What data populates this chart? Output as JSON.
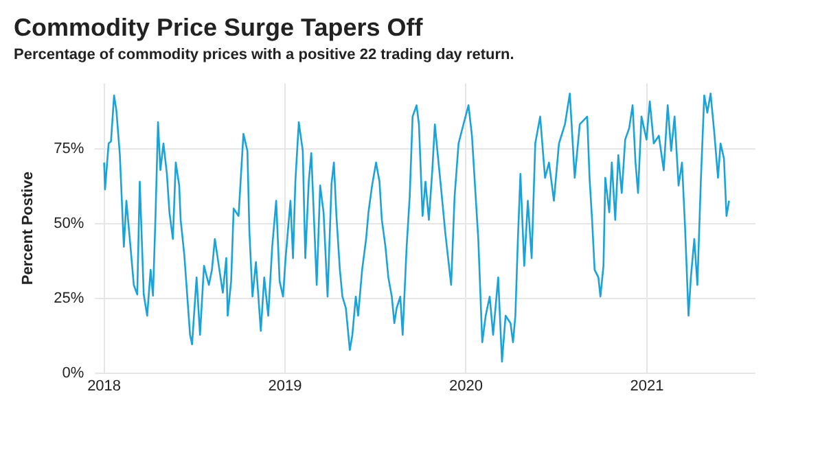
{
  "chart_data": {
    "type": "line",
    "title": "Commodity Price Surge Tapers Off",
    "subtitle": "Percentage of commodity prices with a positive 22 trading day return.",
    "ylabel": "Percent Postive",
    "xlim": [
      2017.95,
      2021.6
    ],
    "xticks": [
      2018,
      2019,
      2020,
      2021
    ],
    "ylim": [
      0,
      97
    ],
    "yticks": [
      {
        "value": 0,
        "label": "0%"
      },
      {
        "value": 25,
        "label": "25%"
      },
      {
        "value": 50,
        "label": "50%"
      },
      {
        "value": 75,
        "label": "75%"
      }
    ],
    "grid": true,
    "legend": false,
    "marker": "none",
    "line_style": "solid",
    "series": [
      {
        "color": "#1aa3d9",
        "x": [
          2018.0,
          2018.005,
          2018.025,
          2018.038,
          2018.055,
          2018.068,
          2018.087,
          2018.109,
          2018.123,
          2018.142,
          2018.164,
          2018.183,
          2018.197,
          2018.219,
          2018.238,
          2018.257,
          2018.27,
          2018.284,
          2018.298,
          2018.311,
          2018.328,
          2018.347,
          2018.361,
          2018.38,
          2018.396,
          2018.415,
          2018.423,
          2018.443,
          2018.475,
          2018.486,
          2018.511,
          2018.53,
          2018.552,
          2018.579,
          2018.596,
          2018.612,
          2018.634,
          2018.656,
          2018.675,
          2018.683,
          2018.702,
          2018.716,
          2018.743,
          2018.77,
          2018.792,
          2018.803,
          2018.82,
          2018.839,
          2018.866,
          2018.885,
          2018.907,
          2018.929,
          2018.951,
          2018.97,
          2018.989,
          2019.003,
          2019.03,
          2019.044,
          2019.057,
          2019.076,
          2019.098,
          2019.112,
          2019.131,
          2019.145,
          2019.175,
          2019.194,
          2019.213,
          2019.235,
          2019.257,
          2019.27,
          2019.284,
          2019.303,
          2019.317,
          2019.336,
          2019.358,
          2019.372,
          2019.391,
          2019.404,
          2019.426,
          2019.448,
          2019.461,
          2019.481,
          2019.503,
          2019.522,
          2019.535,
          2019.555,
          2019.571,
          2019.59,
          2019.604,
          2019.617,
          2019.637,
          2019.65,
          2019.672,
          2019.689,
          2019.705,
          2019.727,
          2019.74,
          2019.76,
          2019.776,
          2019.795,
          2019.814,
          2019.828,
          2019.842,
          2019.863,
          2019.885,
          2019.899,
          2019.918,
          2019.937,
          2019.959,
          2019.986,
          2020.014,
          2020.033,
          2020.068,
          2020.09,
          2020.109,
          2020.131,
          2020.15,
          2020.178,
          2020.199,
          2020.219,
          2020.246,
          2020.26,
          2020.273,
          2020.287,
          2020.301,
          2020.322,
          2020.342,
          2020.363,
          2020.383,
          2020.41,
          2020.437,
          2020.459,
          2020.486,
          2020.514,
          2020.547,
          2020.574,
          2020.601,
          2020.629,
          2020.67,
          2020.683,
          2020.697,
          2020.711,
          2020.732,
          2020.743,
          2020.76,
          2020.77,
          2020.792,
          2020.806,
          2020.825,
          2020.842,
          2020.861,
          2020.88,
          2020.902,
          2020.921,
          2020.937,
          2020.951,
          2020.97,
          2020.998,
          2021.016,
          2021.038,
          2021.066,
          2021.093,
          2021.115,
          2021.134,
          2021.153,
          2021.175,
          2021.194,
          2021.211,
          2021.23,
          2021.243,
          2021.262,
          2021.279,
          2021.298,
          2021.317,
          2021.334,
          2021.352,
          2021.372,
          2021.393,
          2021.407,
          2021.426,
          2021.44,
          2021.454
        ],
        "values": [
          70.5,
          61.5,
          76.9,
          77.6,
          93,
          87.8,
          73,
          42.3,
          57.7,
          44.9,
          29.5,
          26.3,
          64.1,
          26.3,
          19.2,
          34.6,
          25.9,
          52.6,
          84,
          68,
          76.9,
          66.7,
          53.8,
          44.9,
          70.5,
          62.8,
          51.3,
          39.7,
          12.8,
          9.6,
          32,
          12.8,
          35.9,
          29.5,
          34.6,
          44.9,
          35.9,
          26.9,
          38.5,
          19.2,
          30.8,
          55.1,
          52.6,
          80.1,
          74.4,
          47.4,
          25.6,
          37.2,
          14.1,
          32,
          19.2,
          42.3,
          57.7,
          30.8,
          25.6,
          38.5,
          57.7,
          38.5,
          64.1,
          84,
          74.4,
          38.5,
          64.1,
          73.7,
          29.5,
          62.8,
          53.8,
          25.6,
          63.5,
          70.5,
          52.6,
          34.6,
          25.6,
          21.8,
          7.7,
          12.8,
          25.6,
          19.2,
          34.6,
          44.9,
          53.8,
          62.8,
          70.5,
          64.1,
          51.3,
          42.3,
          32,
          25.6,
          16.7,
          21.8,
          25.6,
          12.8,
          42.3,
          59,
          85.9,
          89.7,
          83.3,
          52.6,
          64.1,
          51.3,
          68,
          83.3,
          74.4,
          61.5,
          47.4,
          39.7,
          29.5,
          59,
          76.9,
          83.3,
          89.7,
          79.5,
          44.9,
          10.3,
          19.2,
          25.6,
          12.8,
          32,
          3.8,
          19.2,
          16.7,
          10.3,
          19.2,
          44.9,
          66.7,
          35.9,
          57.7,
          38.5,
          76.9,
          85.9,
          65.4,
          70.5,
          57.7,
          76.9,
          83.3,
          93.6,
          65.4,
          83.3,
          85.9,
          65.4,
          51.3,
          34.6,
          32,
          25.6,
          35.9,
          65.4,
          53.8,
          70.5,
          51.3,
          73,
          60.3,
          78.2,
          82,
          89.7,
          70.5,
          60.3,
          85.9,
          78.2,
          91,
          76.9,
          79.5,
          67.9,
          89.7,
          74.4,
          85.9,
          62.8,
          70.5,
          48.7,
          19.2,
          32,
          44.9,
          29.5,
          64.1,
          93,
          87.2,
          93.6,
          80.8,
          65.4,
          76.9,
          71.8,
          52.6,
          57.7
        ]
      }
    ]
  }
}
